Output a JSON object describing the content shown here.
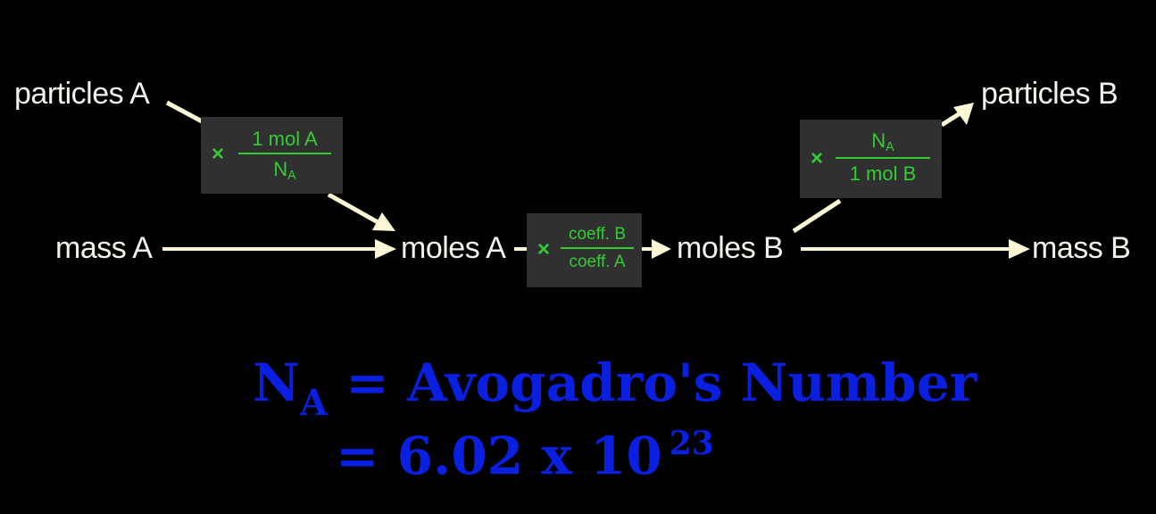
{
  "labels": {
    "particles_a": "particles A",
    "particles_b": "particles B",
    "mass_a": "mass A",
    "moles_a": "moles A",
    "moles_b": "moles B",
    "mass_b": "mass B"
  },
  "factor_particles_to_moles": {
    "times": "×",
    "numerator": "1 mol A",
    "denominator_main": "N",
    "denominator_sub": "A"
  },
  "factor_mole_ratio": {
    "times": "×",
    "numerator": "coeff. B",
    "denominator": "coeff. A"
  },
  "factor_moles_to_particles": {
    "times": "×",
    "numerator_main": "N",
    "numerator_sub": "A",
    "denominator": "1 mol B"
  },
  "definition": {
    "symbol_main": "N",
    "symbol_sub": "A",
    "line1_rest": " = Avogadro's Number",
    "line2": "= 6.02 x 10",
    "exponent": "23"
  },
  "colors": {
    "background": "#000000",
    "text": "#f2f2ec",
    "factor_text": "#33cc33",
    "factor_box": "#303030",
    "definition": "#0a1fe0",
    "arrow": "#fbf7d6"
  }
}
